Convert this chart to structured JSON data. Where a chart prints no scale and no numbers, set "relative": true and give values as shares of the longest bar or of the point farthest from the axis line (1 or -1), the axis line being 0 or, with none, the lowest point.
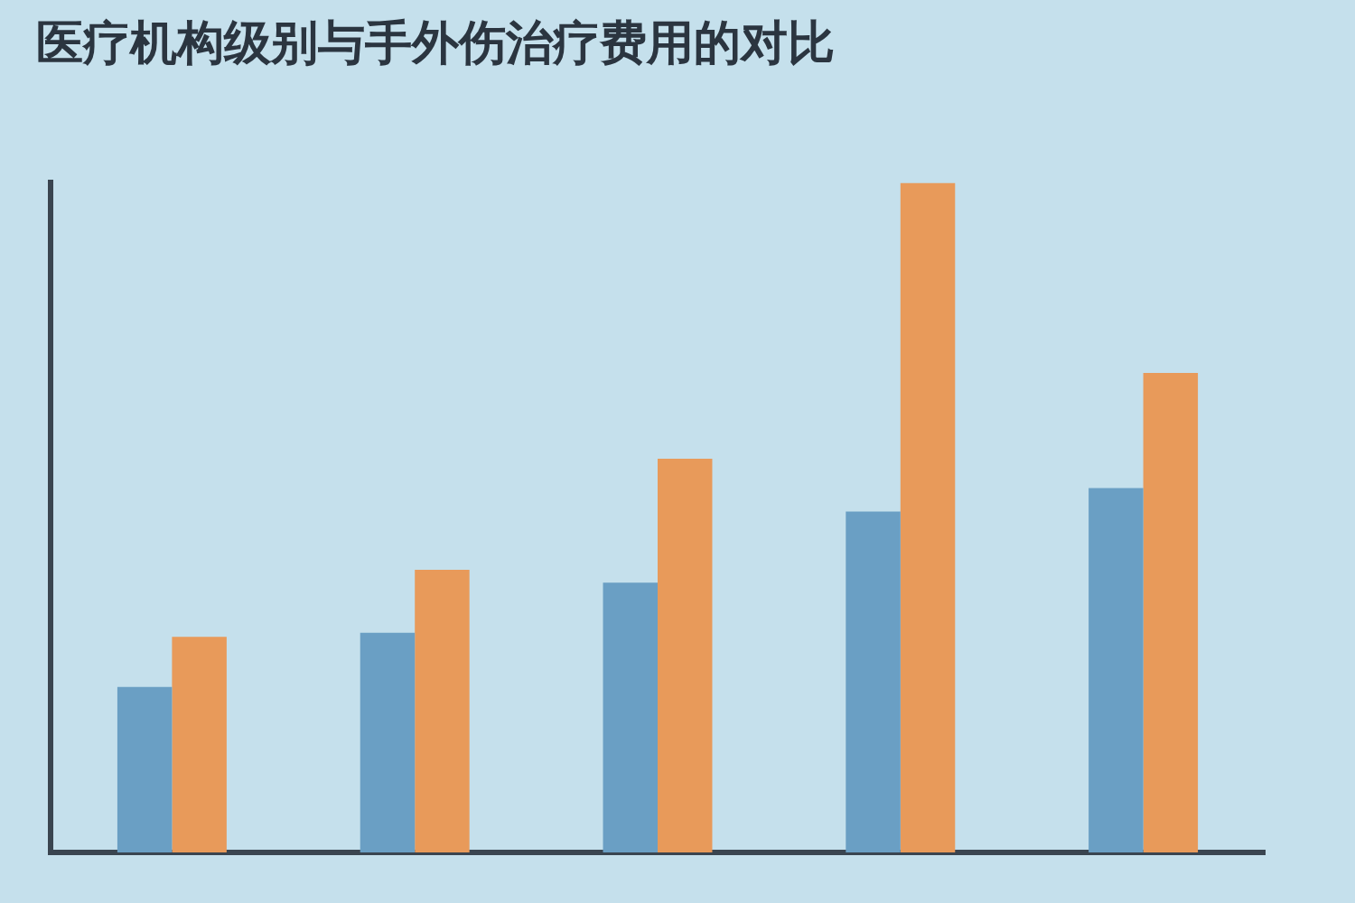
{
  "chart_data": {
    "type": "bar",
    "title": "医疗机构级别与手外伤治疗费用的对比",
    "relative": true,
    "categories": [
      null,
      null,
      null,
      null,
      null
    ],
    "series": [
      {
        "color": "#6a9fc4",
        "values": [
          0.247,
          0.328,
          0.403,
          0.509,
          0.544
        ]
      },
      {
        "color": "#e89a5a",
        "values": [
          0.322,
          0.422,
          0.588,
          1,
          0.716
        ]
      }
    ]
  }
}
